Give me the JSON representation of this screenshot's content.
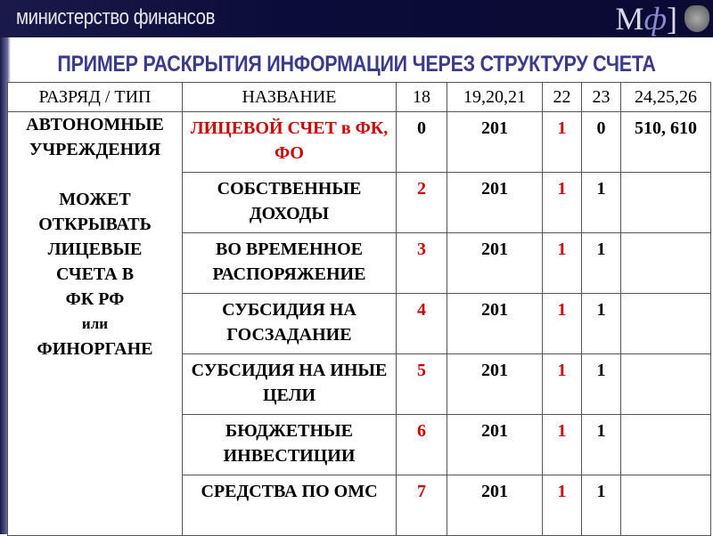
{
  "header": {
    "ministry": "министерство финансов",
    "logo": "МФ"
  },
  "title": "ПРИМЕР РАСКРЫТИЯ ИНФОРМАЦИИ ЧЕРЕЗ СТРУКТУРУ СЧЕТА",
  "table": {
    "columns": [
      "РАЗРЯД / ТИП",
      "НАЗВАНИЕ",
      "18",
      "19,20,21",
      "22",
      "23",
      "24,25,26"
    ],
    "type_cell": {
      "line1": "АВТОНОМНЫЕ",
      "line2": "УЧРЕЖДЕНИЯ",
      "l3": "МОЖЕТ",
      "l4": "ОТКРЫВАТЬ",
      "l5": "ЛИЦЕВЫЕ",
      "l6": "СЧЕТА В",
      "l7": "ФК РФ",
      "l8": "или",
      "l9": "ФИНОРГАНЕ"
    },
    "rows": [
      {
        "name": "ЛИЦЕВОЙ СЧЕТ в ФК, ФО",
        "c18": "0",
        "c19": "201",
        "c22": "1",
        "c23": "0",
        "c24": "510, 610"
      },
      {
        "name": "СОБСТВЕННЫЕ ДОХОДЫ",
        "c18": "2",
        "c19": "201",
        "c22": "1",
        "c23": "1",
        "c24": ""
      },
      {
        "name": "ВО ВРЕМЕННОЕ РАСПОРЯЖЕНИЕ",
        "c18": "3",
        "c19": "201",
        "c22": "1",
        "c23": "1",
        "c24": ""
      },
      {
        "name": "СУБСИДИЯ НА ГОСЗАДАНИЕ",
        "c18": "4",
        "c19": "201",
        "c22": "1",
        "c23": "1",
        "c24": ""
      },
      {
        "name": "СУБСИДИЯ НА ИНЫЕ ЦЕЛИ",
        "c18": "5",
        "c19": "201",
        "c22": "1",
        "c23": "1",
        "c24": ""
      },
      {
        "name": "БЮДЖЕТНЫЕ ИНВЕСТИЦИИ",
        "c18": "6",
        "c19": "201",
        "c22": "1",
        "c23": "1",
        "c24": ""
      },
      {
        "name": "СРЕДСТВА ПО ОМС",
        "c18": "7",
        "c19": "201",
        "c22": "1",
        "c23": "1",
        "c24": ""
      }
    ]
  },
  "colors": {
    "header_bg": "#0a0a33",
    "title": "#3b3b8c",
    "highlight": "#cc0000"
  }
}
